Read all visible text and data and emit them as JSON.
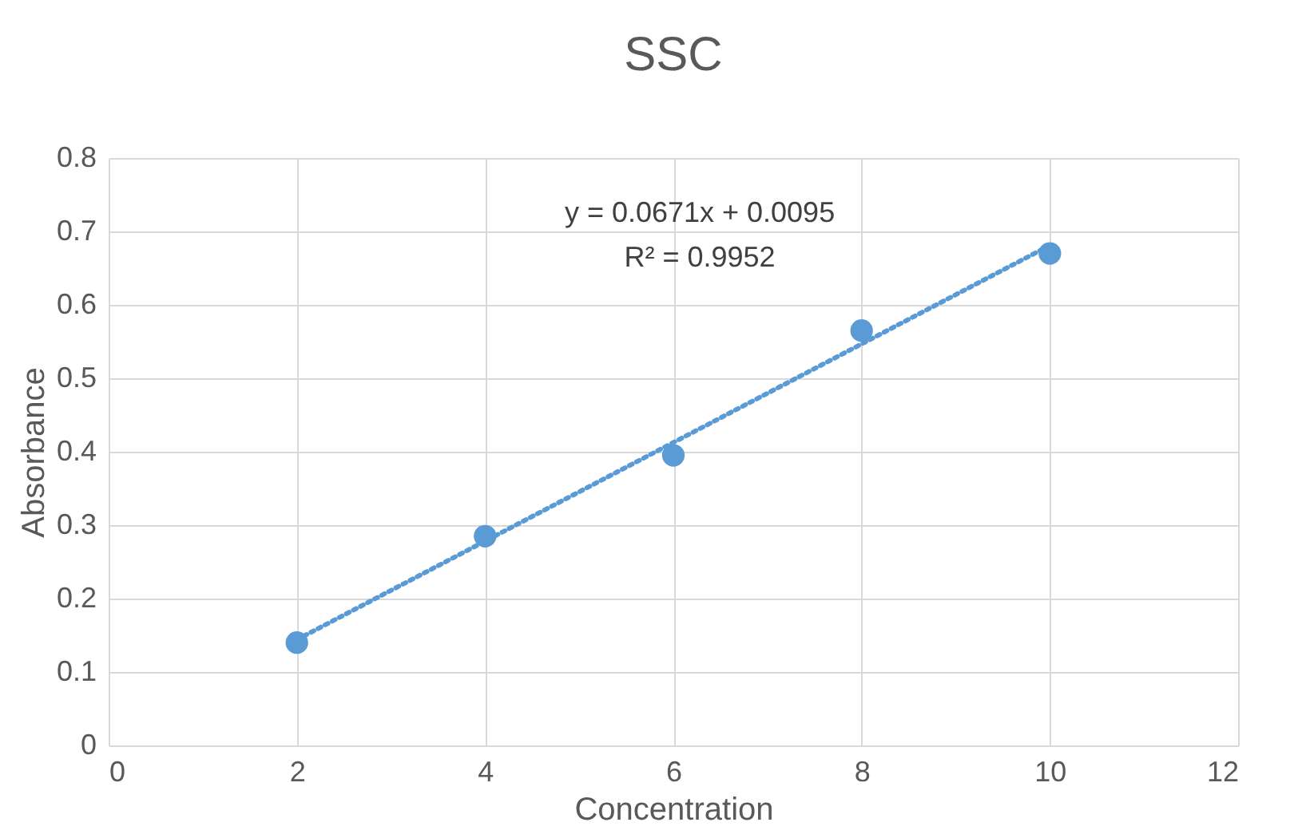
{
  "chart_data": {
    "type": "scatter",
    "title": "SSC",
    "xlabel": "Concentration",
    "ylabel": "Absorbance",
    "annotations": [
      "y = 0.0671x + 0.0095",
      "R² = 0.9952"
    ],
    "xlim": [
      0,
      12
    ],
    "xticks": [
      0,
      2,
      4,
      6,
      8,
      10,
      12
    ],
    "ylim": [
      0,
      0.8
    ],
    "yticks": [
      0,
      0.1,
      0.2,
      0.3,
      0.4,
      0.5,
      0.6,
      0.7,
      0.8
    ],
    "grid": true,
    "x": [
      2,
      4,
      6,
      8,
      10
    ],
    "series": [
      {
        "type": "scatter",
        "color": "#5b9bd5",
        "marker": "circle",
        "values": [
          0.14,
          0.285,
          0.395,
          0.565,
          0.67
        ]
      },
      {
        "type": "line",
        "color": "#5b9bd5",
        "marker": "none",
        "line_style": "dotted",
        "x": [
          2,
          10
        ],
        "values": [
          0.144,
          0.681
        ]
      }
    ]
  }
}
